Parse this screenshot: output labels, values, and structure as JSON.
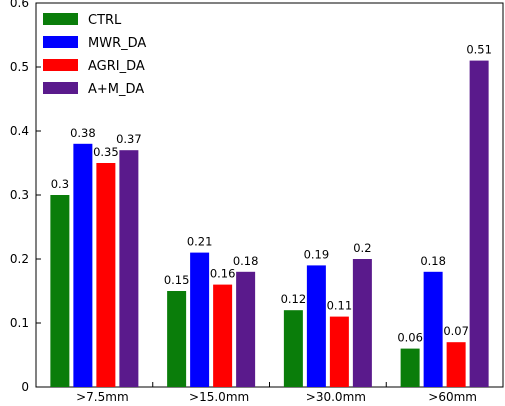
{
  "chart_data": {
    "type": "bar",
    "title": "",
    "xlabel": "",
    "ylabel": "",
    "categories": [
      ">7.5mm",
      ">15.0mm",
      ">30.0mm",
      ">60mm"
    ],
    "series": [
      {
        "name": "CTRL",
        "color": "#0a7d0a",
        "values": [
          0.3,
          0.15,
          0.12,
          0.06
        ],
        "labels": [
          "0.3",
          "0.15",
          "0.12",
          "0.06"
        ]
      },
      {
        "name": "MWR_DA",
        "color": "#0000ff",
        "values": [
          0.38,
          0.21,
          0.19,
          0.18
        ],
        "labels": [
          "0.38",
          "0.21",
          "0.19",
          "0.18"
        ]
      },
      {
        "name": "AGRI_DA",
        "color": "#ff0000",
        "values": [
          0.35,
          0.16,
          0.11,
          0.07
        ],
        "labels": [
          "0.35",
          "0.16",
          "0.11",
          "0.07"
        ]
      },
      {
        "name": "A+M_DA",
        "color": "#5a1a8c",
        "values": [
          0.37,
          0.18,
          0.2,
          0.51
        ],
        "labels": [
          "0.37",
          "0.18",
          "0.2",
          "0.51"
        ]
      }
    ],
    "ylim": [
      0,
      0.6
    ],
    "yticks": [
      "0",
      "0.1",
      "0.2",
      "0.3",
      "0.4",
      "0.5",
      "0.6"
    ],
    "grid": false,
    "legend_position": "top-left"
  }
}
